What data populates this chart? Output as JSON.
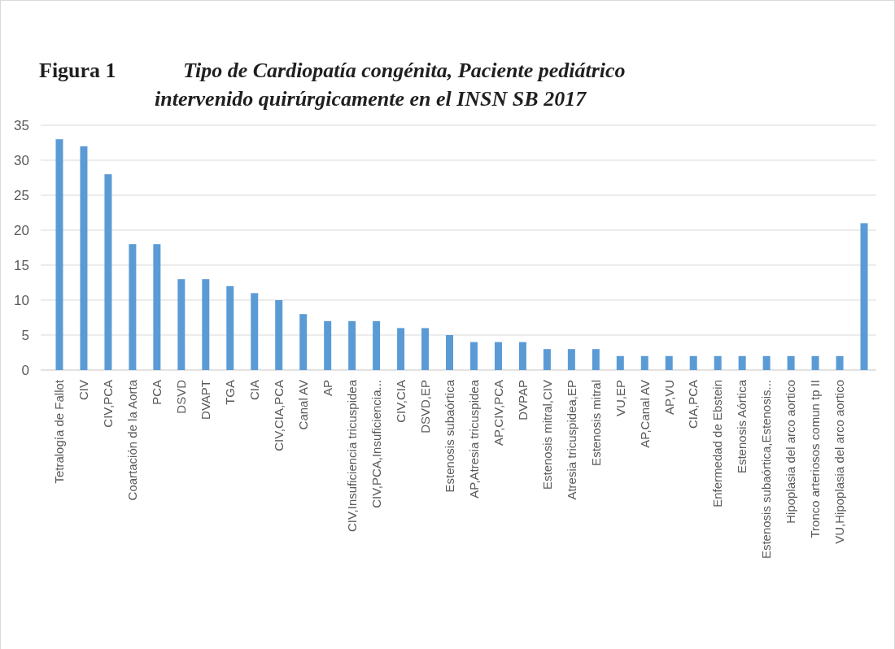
{
  "chart_data": {
    "type": "bar",
    "title": "Figura 1",
    "subtitle": "Tipo de Cardiopatía congénita, Paciente pediátrico intervenido quirúrgicamente en el INSN SB 2017",
    "categories": [
      "Tetralogía de Fallot",
      "CIV",
      "CIV,PCA",
      "Coartación de la Aorta",
      "PCA",
      "DSVD",
      "DVAPT",
      "TGA",
      "CIA",
      "CIV,CIA,PCA",
      "Canal AV",
      "AP",
      "CIV,Insuficiencia tricuspidea",
      "CIV,PCA,Insuficiencia...",
      "CIV,CIA",
      "DSVD,EP",
      "Estenosis subaórtica",
      "AP,Atresia tricuspidea",
      "AP,CIV,PCA",
      "DVPAP",
      "Estenosis mitral,CIV",
      "Atresia tricuspidea,EP",
      "Estenosis mitral",
      "VU,EP",
      "AP,Canal AV",
      "AP,VU",
      "CIA,PCA",
      "Enfermedad de Ebstein",
      "Estenosis  Aórtica",
      "Estenosis subaórtica,Estenosis...",
      "Hipoplasia del arco aortico",
      "Tronco arteriosos comun tp II",
      "VU,Hipoplasia del arco aortico",
      null
    ],
    "values": [
      33,
      32,
      28,
      18,
      18,
      13,
      13,
      12,
      11,
      10,
      8,
      7,
      7,
      7,
      6,
      6,
      5,
      4,
      4,
      4,
      3,
      3,
      3,
      2,
      2,
      2,
      2,
      2,
      2,
      2,
      2,
      2,
      2,
      21
    ],
    "color": "#5b9bd5",
    "ylim": [
      0,
      35
    ],
    "yticks": [
      0,
      5,
      10,
      15,
      20,
      25,
      30,
      35
    ],
    "grid": "y"
  }
}
